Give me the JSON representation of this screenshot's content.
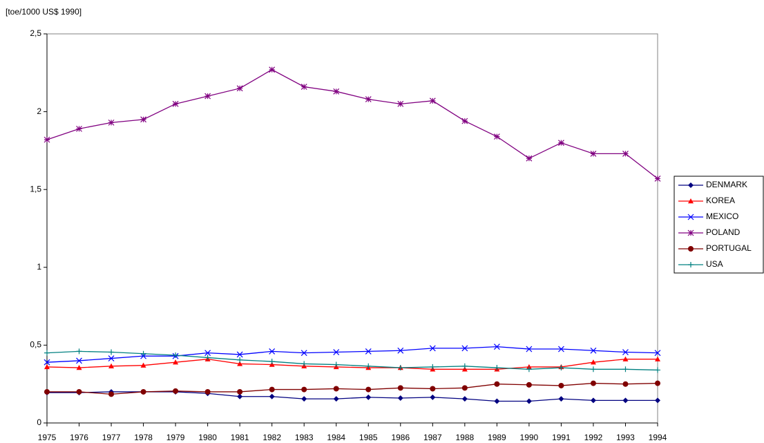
{
  "chart_data": {
    "type": "line",
    "y_axis_label": "[toe/1000 US$ 1990]",
    "categories": [
      "1975",
      "1976",
      "1977",
      "1978",
      "1979",
      "1980",
      "1981",
      "1982",
      "1983",
      "1984",
      "1985",
      "1986",
      "1987",
      "1988",
      "1989",
      "1990",
      "1991",
      "1992",
      "1993",
      "1994"
    ],
    "ylim": [
      0,
      2.5
    ],
    "yticks": [
      0,
      {
        "value": 0.5,
        "label": "0,5"
      },
      1,
      {
        "value": 1.5,
        "label": "1,5"
      },
      2,
      {
        "value": 2.5,
        "label": "2,5"
      }
    ],
    "grid": false,
    "legend": "right",
    "series": [
      {
        "name": "DENMARK",
        "color": "#000080",
        "marker": "diamond",
        "values": [
          0.195,
          0.195,
          0.2,
          0.2,
          0.2,
          0.19,
          0.17,
          0.17,
          0.155,
          0.155,
          0.165,
          0.16,
          0.165,
          0.155,
          0.14,
          0.14,
          0.155,
          0.145,
          0.145,
          0.145
        ]
      },
      {
        "name": "KOREA",
        "color": "#ff0000",
        "marker": "triangle",
        "values": [
          0.36,
          0.355,
          0.365,
          0.37,
          0.39,
          0.41,
          0.38,
          0.375,
          0.365,
          0.36,
          0.355,
          0.355,
          0.345,
          0.345,
          0.345,
          0.36,
          0.36,
          0.39,
          0.41,
          0.41
        ]
      },
      {
        "name": "MEXICO",
        "color": "#0000ff",
        "marker": "x",
        "values": [
          0.39,
          0.4,
          0.415,
          0.43,
          0.43,
          0.45,
          0.44,
          0.46,
          0.45,
          0.455,
          0.46,
          0.465,
          0.48,
          0.48,
          0.49,
          0.475,
          0.475,
          0.465,
          0.455,
          0.45
        ]
      },
      {
        "name": "POLAND",
        "color": "#800080",
        "marker": "asterisk",
        "values": [
          1.82,
          1.89,
          1.93,
          1.95,
          2.05,
          2.1,
          2.15,
          2.27,
          2.16,
          2.13,
          2.08,
          2.05,
          2.07,
          1.94,
          1.84,
          1.7,
          1.8,
          1.73,
          1.73,
          1.57
        ]
      },
      {
        "name": "PORTUGAL",
        "color": "#800000",
        "marker": "circle",
        "values": [
          0.2,
          0.2,
          0.185,
          0.2,
          0.205,
          0.2,
          0.2,
          0.215,
          0.215,
          0.22,
          0.215,
          0.225,
          0.22,
          0.225,
          0.25,
          0.245,
          0.24,
          0.255,
          0.25,
          0.255
        ]
      },
      {
        "name": "USA",
        "color": "#008080",
        "marker": "plus",
        "values": [
          0.45,
          0.46,
          0.455,
          0.445,
          0.435,
          0.42,
          0.405,
          0.395,
          0.38,
          0.375,
          0.365,
          0.355,
          0.36,
          0.365,
          0.355,
          0.345,
          0.355,
          0.345,
          0.345,
          0.34
        ]
      }
    ]
  }
}
